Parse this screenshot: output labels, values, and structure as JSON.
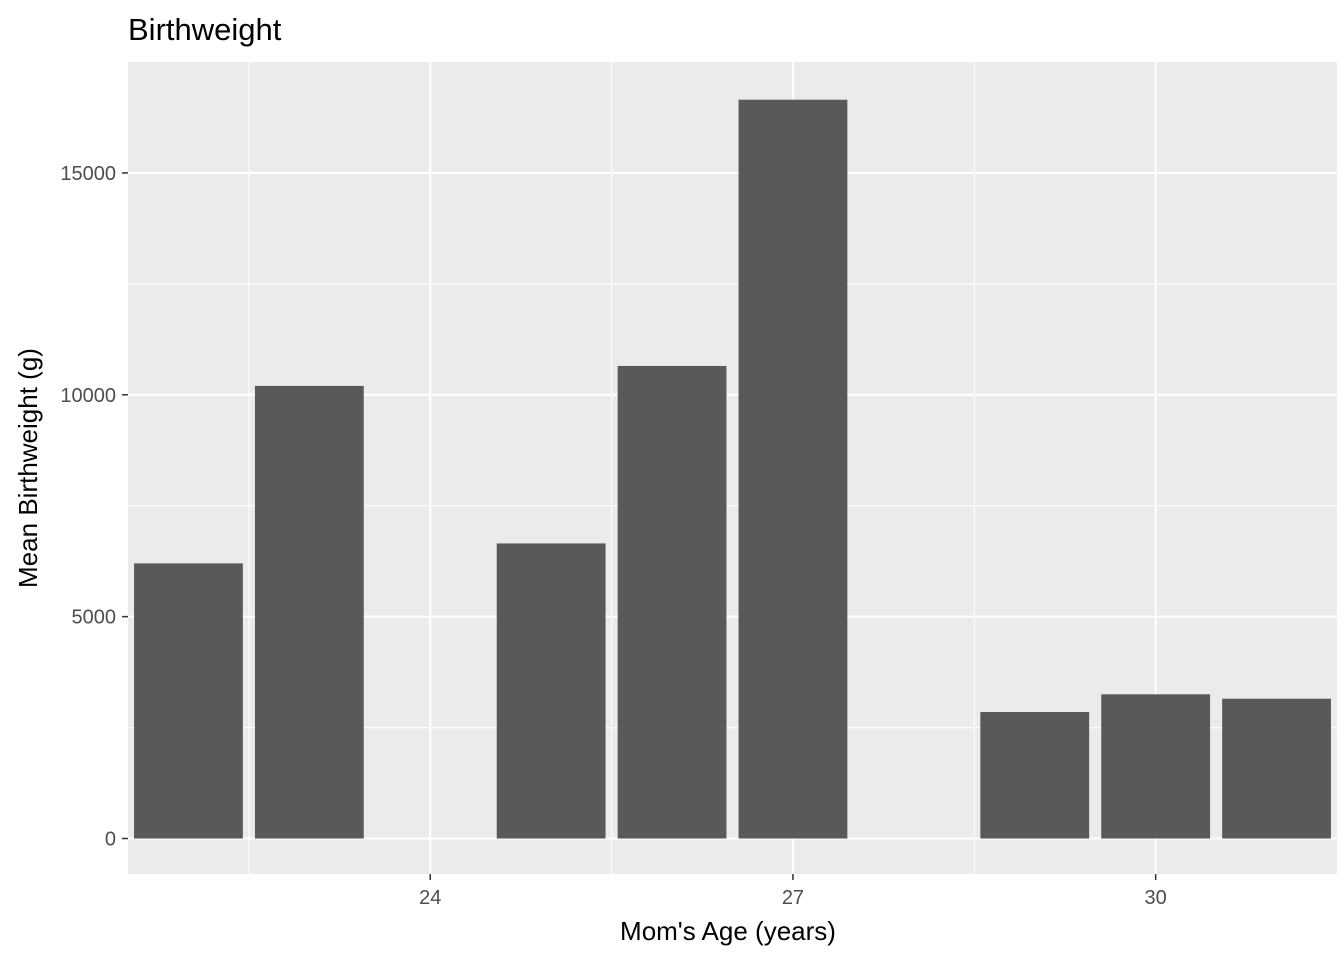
{
  "chart_data": {
    "type": "bar",
    "title": "Birthweight",
    "xlabel": "Mom's Age (years)",
    "ylabel": "Mean Birthweight (g)",
    "categories": [
      22,
      23,
      25,
      26,
      27,
      29,
      30,
      31
    ],
    "values": [
      6200,
      10200,
      6650,
      10650,
      16650,
      2850,
      3250,
      3150
    ],
    "xlim": [
      21.5,
      31.5
    ],
    "ylim": [
      -800,
      17500
    ],
    "xticks": [
      24,
      27,
      30
    ],
    "yticks": [
      0,
      5000,
      10000,
      15000
    ],
    "grid": true,
    "colors": {
      "bar": "#595959",
      "panel": "#ebebeb",
      "grid": "#ffffff"
    }
  }
}
